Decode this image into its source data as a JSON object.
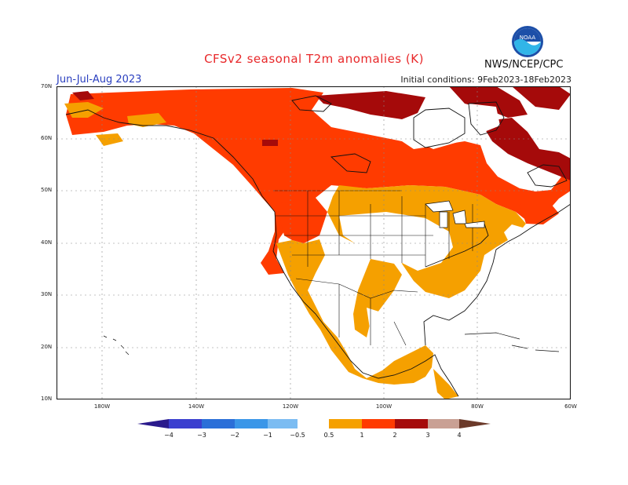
{
  "header": {
    "title": "CFSv2 seasonal T2m anomalies (K)",
    "season": "Jun-Jul-Aug 2023",
    "initial_conditions": "Initial conditions: 9Feb2023-18Feb2023",
    "agency": "NWS/NCEP/CPC",
    "logo_icon": "noaa-logo-icon",
    "logo_text": "NOAA"
  },
  "map": {
    "lat_labels": [
      "70N",
      "60N",
      "50N",
      "40N",
      "30N",
      "20N",
      "10N"
    ],
    "lon_labels": [
      "180W",
      "140W",
      "120W",
      "100W",
      "80W",
      "60W"
    ]
  },
  "colorbar": {
    "labels": [
      "−4",
      "−3",
      "−2",
      "−1",
      "−0.5",
      "0.5",
      "1",
      "2",
      "3",
      "4"
    ],
    "colors": {
      "lt_neg4": "#2a1a8c",
      "neg4_neg3": "#3b3fcf",
      "neg3_neg2": "#2b6fd8",
      "neg2_neg1": "#3a96e8",
      "neg1_neg05": "#7bbcf2",
      "neutral": "#ffffff",
      "p05_1": "#f5a000",
      "p1_2": "#ff3b00",
      "p2_3": "#a50a0a",
      "p3_4": "#c9a094",
      "gt4": "#6b3a2a"
    }
  }
}
